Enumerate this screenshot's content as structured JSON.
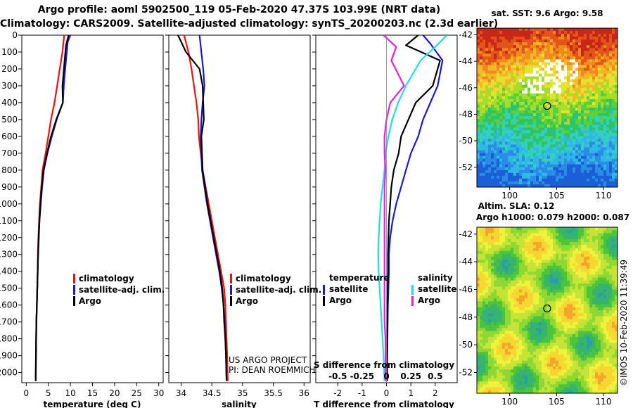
{
  "header": {
    "title_line1": "Argo profile: aoml 5902500_119 05-Feb-2020 47.37S 103.99E (NRT data)",
    "title_line2": "Climatology: CARS2009. Satellite-adjusted climatology: synTS_20200203.nc (2.3d earlier)"
  },
  "colors": {
    "climatology": "#ee1111",
    "satellite_adj": "#1a1acc",
    "argo": "#000000",
    "sat_salinity": "#22dddd",
    "argo_salinity_diff": "#dd22dd"
  },
  "chart_data": [
    {
      "type": "line",
      "name": "temperature-profile",
      "xlabel": "temperature (deg C)",
      "xlim": [
        -1,
        31
      ],
      "xticks": [
        0,
        5,
        10,
        15,
        20,
        25,
        30
      ],
      "ylim": [
        2060,
        0
      ],
      "yticks": [
        0,
        100,
        200,
        300,
        400,
        500,
        600,
        700,
        800,
        900,
        1000,
        1100,
        1200,
        1300,
        1400,
        1500,
        1600,
        1700,
        1800,
        1900,
        2000
      ],
      "legend": [
        "climatology",
        "satellite-adj. clim.",
        "Argo"
      ],
      "series": [
        {
          "name": "climatology",
          "color": "#ee1111",
          "x": [
            8.6,
            8.2,
            7.6,
            7.0,
            6.4,
            5.6,
            5.0,
            4.4,
            3.7,
            3.4,
            3.1,
            2.9,
            2.75,
            2.65,
            2.6,
            2.5,
            2.4,
            2.3,
            2.25,
            2.2,
            2.15
          ],
          "y": [
            0,
            100,
            200,
            300,
            400,
            500,
            600,
            700,
            800,
            900,
            1000,
            1100,
            1200,
            1300,
            1400,
            1500,
            1600,
            1700,
            1800,
            1900,
            2050
          ]
        },
        {
          "name": "satellite-adj. clim.",
          "color": "#1a1acc",
          "x": [
            10.0,
            9.4,
            9.0,
            8.5,
            8.3,
            6.9,
            5.8,
            4.8,
            4.0,
            3.6,
            3.3,
            3.0,
            2.85,
            2.7,
            2.6,
            2.5,
            2.4,
            2.3,
            2.25,
            2.2,
            2.15
          ],
          "y": [
            0,
            40,
            150,
            300,
            400,
            500,
            600,
            700,
            800,
            900,
            1000,
            1100,
            1200,
            1300,
            1400,
            1500,
            1600,
            1700,
            1800,
            1900,
            2050
          ]
        },
        {
          "name": "Argo",
          "color": "#000000",
          "x": [
            9.6,
            9.0,
            8.7,
            8.2,
            8.3,
            6.8,
            5.6,
            4.7,
            3.9,
            3.5,
            3.2,
            3.0,
            2.8,
            2.7,
            2.6,
            2.5,
            2.4,
            2.3,
            2.25,
            2.2,
            2.15
          ],
          "y": [
            0,
            60,
            150,
            300,
            400,
            500,
            600,
            700,
            800,
            900,
            1000,
            1100,
            1200,
            1300,
            1400,
            1500,
            1600,
            1700,
            1800,
            1900,
            2050
          ]
        }
      ]
    },
    {
      "type": "line",
      "name": "salinity-profile",
      "xlabel": "salinity",
      "xlim": [
        33.8,
        36.1
      ],
      "xticks": [
        34,
        34.5,
        35,
        35.5,
        36
      ],
      "xtick_labels": [
        "34",
        "34.5",
        "35",
        "35.5",
        "36"
      ],
      "ylim": [
        2060,
        0
      ],
      "legend": [
        "climatology",
        "satellite-adj. clim.",
        "Argo"
      ],
      "series": [
        {
          "name": "climatology",
          "color": "#ee1111",
          "x": [
            34.05,
            34.12,
            34.17,
            34.21,
            34.25,
            34.28,
            34.29,
            34.32,
            34.35,
            34.4,
            34.45,
            34.5,
            34.55,
            34.6,
            34.65,
            34.7,
            34.72,
            34.73,
            34.74,
            34.75,
            34.76
          ],
          "y": [
            0,
            100,
            200,
            300,
            400,
            500,
            600,
            700,
            800,
            900,
            1000,
            1100,
            1200,
            1300,
            1400,
            1500,
            1600,
            1700,
            1800,
            1900,
            2050
          ]
        },
        {
          "name": "satellite-adj. clim.",
          "color": "#1a1acc",
          "x": [
            34.3,
            34.33,
            34.36,
            34.38,
            34.35,
            34.33,
            34.32,
            34.33,
            34.34,
            34.38,
            34.42,
            34.47,
            34.52,
            34.57,
            34.62,
            34.66,
            34.69,
            34.71,
            34.72,
            34.73,
            34.74
          ],
          "y": [
            0,
            100,
            200,
            300,
            400,
            500,
            600,
            700,
            800,
            900,
            1000,
            1100,
            1200,
            1300,
            1400,
            1500,
            1600,
            1700,
            1800,
            1900,
            2050
          ]
        },
        {
          "name": "Argo",
          "color": "#000000",
          "x": [
            33.95,
            34.08,
            34.3,
            34.35,
            34.36,
            34.37,
            34.33,
            34.34,
            34.35,
            34.39,
            34.43,
            34.48,
            34.53,
            34.58,
            34.63,
            34.67,
            34.69,
            34.7,
            34.72,
            34.73,
            34.74
          ],
          "y": [
            0,
            100,
            200,
            300,
            400,
            500,
            600,
            700,
            800,
            900,
            1000,
            1100,
            1200,
            1300,
            1400,
            1500,
            1600,
            1700,
            1800,
            1900,
            2050
          ]
        }
      ]
    },
    {
      "type": "line",
      "name": "difference-profile",
      "xlabel": "T difference from climatology",
      "xlim": [
        -2.9,
        2.9
      ],
      "xticks": [
        -2,
        -1,
        0,
        1,
        2
      ],
      "xtick_labels": [
        "-2",
        "-1",
        "0",
        "1",
        "2"
      ],
      "top_axis_label": "S difference from climatology",
      "top_xtick_labels": [
        "-0.5",
        "-0.25",
        "0",
        "0.25",
        "0.5"
      ],
      "ylim": [
        2060,
        0
      ],
      "legend_temperature": {
        "header": "temperature",
        "items": [
          "satellite",
          "Argo"
        ]
      },
      "legend_salinity": {
        "header": "salinity",
        "items": [
          "satellite",
          "Argo"
        ]
      },
      "series": [
        {
          "name": "temperature satellite",
          "color": "#1a1acc",
          "x": [
            1.5,
            1.8,
            2.3,
            2.1,
            1.8,
            1.5,
            1.3,
            1.0,
            0.8,
            0.6,
            0.4,
            0.25,
            0.15,
            0.1,
            0.1,
            0.08,
            0.06,
            0.05,
            0.04,
            0.03,
            0.02
          ],
          "y": [
            0,
            50,
            150,
            300,
            400,
            500,
            600,
            700,
            800,
            900,
            1000,
            1100,
            1200,
            1300,
            1400,
            1500,
            1600,
            1700,
            1800,
            1900,
            2050
          ]
        },
        {
          "name": "temperature Argo",
          "color": "#000000",
          "x": [
            1.3,
            0.8,
            2.2,
            1.9,
            1.2,
            0.9,
            0.6,
            0.5,
            0.3,
            0.2,
            0.15,
            0.1,
            0.08,
            0.06,
            0.06,
            0.05,
            0.04,
            0.03,
            0.03,
            0.03,
            0.03
          ],
          "y": [
            0,
            60,
            150,
            300,
            400,
            500,
            600,
            700,
            800,
            900,
            1000,
            1100,
            1200,
            1300,
            1400,
            1500,
            1600,
            1700,
            1800,
            1900,
            2050
          ]
        },
        {
          "name": "salinity satellite",
          "color": "#22dddd",
          "x": [
            0.62,
            0.5,
            0.35,
            0.2,
            0.12,
            0.06,
            0.02,
            -0.01,
            -0.02,
            -0.04,
            -0.06,
            -0.07,
            -0.08,
            -0.085,
            -0.08,
            -0.07,
            -0.06,
            -0.05,
            -0.04,
            -0.03,
            -0.02
          ],
          "y": [
            0,
            70,
            150,
            300,
            400,
            500,
            600,
            700,
            800,
            900,
            1000,
            1100,
            1200,
            1300,
            1400,
            1500,
            1600,
            1700,
            1800,
            1900,
            2050
          ]
        },
        {
          "name": "salinity Argo",
          "color": "#dd22dd",
          "x": [
            -0.03,
            0.1,
            0.05,
            0.18,
            0.04,
            0.0,
            -0.02,
            -0.02,
            -0.01,
            -0.02,
            -0.02,
            -0.02,
            -0.02,
            -0.02,
            -0.02,
            -0.02,
            -0.02,
            -0.02,
            -0.01,
            -0.01,
            -0.01
          ],
          "y": [
            0,
            70,
            150,
            300,
            400,
            500,
            600,
            700,
            800,
            900,
            1000,
            1100,
            1200,
            1300,
            1400,
            1500,
            1600,
            1700,
            1800,
            1900,
            2050
          ]
        }
      ]
    },
    {
      "type": "heatmap",
      "name": "sst-map",
      "title": "sat. SST: 9.6 Argo: 9.58",
      "xlim": [
        96.5,
        111.5
      ],
      "ylim": [
        -53.5,
        -41.5
      ],
      "xticks": [
        100,
        105,
        110
      ],
      "yticks": [
        -42,
        -44,
        -46,
        -48,
        -50,
        -52
      ],
      "marker": {
        "lon": 103.99,
        "lat": -47.37
      }
    },
    {
      "type": "heatmap",
      "name": "sla-map",
      "title_line1": "Altim. SLA: 0.12",
      "title_line2": "Argo h1000: 0.079 h2000: 0.087",
      "xlim": [
        96.5,
        111.5
      ],
      "ylim": [
        -53.5,
        -41.5
      ],
      "xticks": [
        100,
        105,
        110
      ],
      "yticks": [
        -42,
        -44,
        -46,
        -48,
        -50,
        -52
      ],
      "marker": {
        "lon": 103.99,
        "lat": -47.37
      }
    }
  ],
  "annotations": {
    "project_line1": "US ARGO PROJECT",
    "project_line2": "PI: DEAN ROEMMICH",
    "copyright": "©IMOS 10-Feb-2020 11:39:49"
  }
}
